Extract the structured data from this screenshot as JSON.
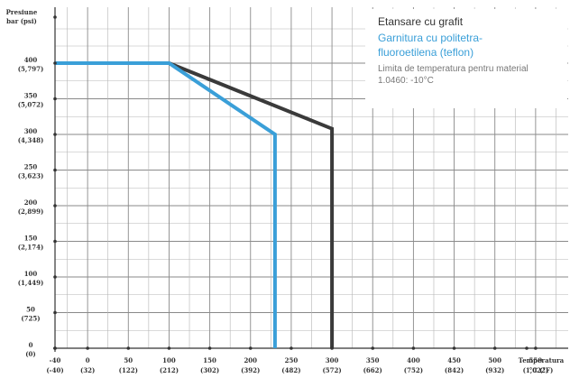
{
  "chart_data": {
    "type": "line",
    "y_axis_title": [
      "Presiune",
      "bar (psi)"
    ],
    "x_axis_title": [
      "Temperatura",
      "°C (°F)"
    ],
    "ylim": [
      0,
      400
    ],
    "xlim": [
      -40,
      590
    ],
    "y_ticks": [
      {
        "value": 400,
        "label": "400",
        "sub": "(5,797)"
      },
      {
        "value": 350,
        "label": "350",
        "sub": "(5,072)"
      },
      {
        "value": 300,
        "label": "300",
        "sub": "(4,348)"
      },
      {
        "value": 250,
        "label": "250",
        "sub": "(3,623)"
      },
      {
        "value": 200,
        "label": "200",
        "sub": "(2,899)"
      },
      {
        "value": 150,
        "label": "150",
        "sub": "(2,174)"
      },
      {
        "value": 100,
        "label": "100",
        "sub": "(1,449)"
      },
      {
        "value": 50,
        "label": "50",
        "sub": "(725)"
      },
      {
        "value": 0,
        "label": "0",
        "sub": "(0)"
      }
    ],
    "x_ticks": [
      {
        "value": -40,
        "label": "-40",
        "sub": "(-40)"
      },
      {
        "value": 0,
        "label": "0",
        "sub": "(32)"
      },
      {
        "value": 50,
        "label": "50",
        "sub": "(122)"
      },
      {
        "value": 100,
        "label": "100",
        "sub": "(212)"
      },
      {
        "value": 150,
        "label": "150",
        "sub": "(302)"
      },
      {
        "value": 200,
        "label": "200",
        "sub": "(392)"
      },
      {
        "value": 250,
        "label": "250",
        "sub": "(482)"
      },
      {
        "value": 300,
        "label": "300",
        "sub": "(572)"
      },
      {
        "value": 350,
        "label": "350",
        "sub": "(662)"
      },
      {
        "value": 400,
        "label": "400",
        "sub": "(752)"
      },
      {
        "value": 450,
        "label": "450",
        "sub": "(842)"
      },
      {
        "value": 500,
        "label": "500",
        "sub": "(932)"
      },
      {
        "value": 550,
        "label": "550",
        "sub": "(1,022)"
      }
    ],
    "grid": true,
    "series": [
      {
        "name": "Etansare cu grafit",
        "color": "#3a3a3a",
        "points": [
          [
            -40,
            400
          ],
          [
            100,
            400
          ],
          [
            300,
            308
          ],
          [
            300,
            0
          ]
        ]
      },
      {
        "name": "Garnitura cu politetra-fluoroetilena (teflon)",
        "color": "#3a9fd8",
        "points": [
          [
            -40,
            400
          ],
          [
            100,
            400
          ],
          [
            230,
            300
          ],
          [
            230,
            0
          ]
        ]
      }
    ],
    "legend": {
      "position": "top-right",
      "item1": "Etansare cu grafit",
      "item2_line1": "Garnitura cu politetra-",
      "item2_line2": "fluoroetilena (teflon)",
      "note_line1": "Limita de temperatura pentru material",
      "note_line2": "1.0460: -10°C"
    }
  }
}
